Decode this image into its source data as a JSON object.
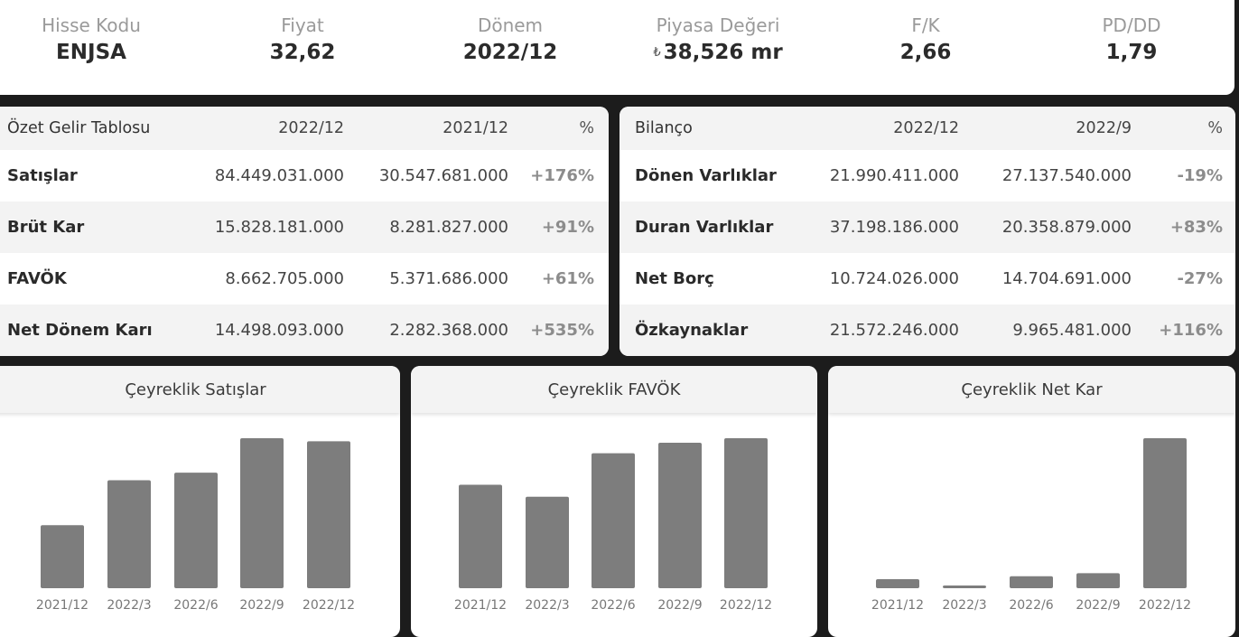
{
  "summary": {
    "hisse_kodu": {
      "label": "Hisse Kodu",
      "value": "ENJSA"
    },
    "fiyat": {
      "label": "Fiyat",
      "value": "32,62"
    },
    "donem": {
      "label": "Dönem",
      "value": "2022/12"
    },
    "piyasa_degeri": {
      "label": "Piyasa Değeri",
      "currency": "₺",
      "value": "38,526 mr"
    },
    "fk": {
      "label": "F/K",
      "value": "2,66"
    },
    "pddd": {
      "label": "PD/DD",
      "value": "1,79"
    }
  },
  "income": {
    "headers": [
      "Özet Gelir Tablosu",
      "2022/12",
      "2021/12",
      "%"
    ],
    "rows": [
      {
        "label": "Satışlar",
        "a": "84.449.031.000",
        "b": "30.547.681.000",
        "pct": "+176%"
      },
      {
        "label": "Brüt Kar",
        "a": "15.828.181.000",
        "b": "8.281.827.000",
        "pct": "+91%"
      },
      {
        "label": "FAVÖK",
        "a": "8.662.705.000",
        "b": "5.371.686.000",
        "pct": "+61%"
      },
      {
        "label": "Net Dönem Karı",
        "a": "14.498.093.000",
        "b": "2.282.368.000",
        "pct": "+535%"
      }
    ]
  },
  "balance": {
    "headers": [
      "Bilanço",
      "2022/12",
      "2022/9",
      "%"
    ],
    "rows": [
      {
        "label": "Dönen Varlıklar",
        "a": "21.990.411.000",
        "b": "27.137.540.000",
        "pct": "-19%"
      },
      {
        "label": "Duran Varlıklar",
        "a": "37.198.186.000",
        "b": "20.358.879.000",
        "pct": "+83%"
      },
      {
        "label": "Net Borç",
        "a": "10.724.026.000",
        "b": "14.704.691.000",
        "pct": "-27%"
      },
      {
        "label": "Özkaynaklar",
        "a": "21.572.246.000",
        "b": "9.965.481.000",
        "pct": "+116%"
      }
    ]
  },
  "chart_data": [
    {
      "type": "bar",
      "title": "Çeyreklik Satışlar",
      "categories": [
        "2021/12",
        "2022/3",
        "2022/6",
        "2022/9",
        "2022/12"
      ],
      "values": [
        42,
        72,
        77,
        100,
        98
      ],
      "ylim": [
        0,
        100
      ],
      "bar_color": "#7d7d7d"
    },
    {
      "type": "bar",
      "title": "Çeyreklik FAVÖK",
      "categories": [
        "2021/12",
        "2022/3",
        "2022/6",
        "2022/9",
        "2022/12"
      ],
      "values": [
        69,
        61,
        90,
        97,
        100
      ],
      "ylim": [
        0,
        100
      ],
      "bar_color": "#7d7d7d"
    },
    {
      "type": "bar",
      "title": "Çeyreklik Net Kar",
      "categories": [
        "2021/12",
        "2022/3",
        "2022/6",
        "2022/9",
        "2022/12"
      ],
      "values": [
        6,
        1.5,
        8,
        10,
        100
      ],
      "ylim": [
        0,
        100
      ],
      "bar_color": "#7d7d7d"
    }
  ]
}
